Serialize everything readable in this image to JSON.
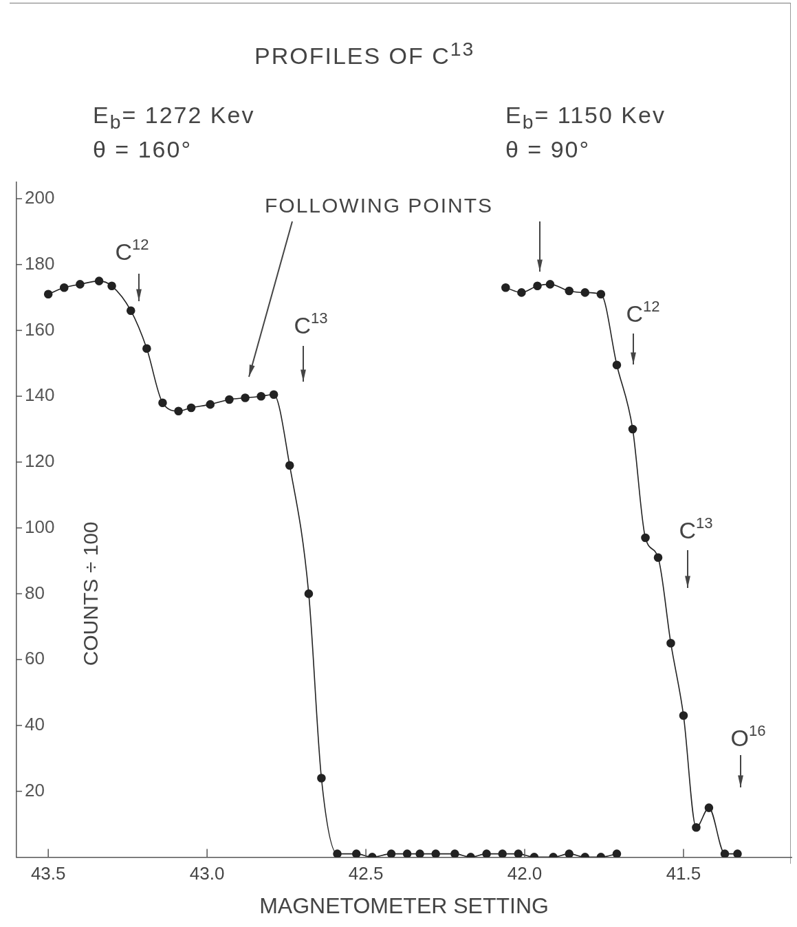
{
  "chart_data": {
    "type": "line",
    "title": "PROFILES OF C$^{13}$",
    "xlabel": "MAGNETOMETER SETTING",
    "ylabel": "COUNTS ÷ 100",
    "series": [
      {
        "color": "#222222",
        "x": [
          43.5,
          43.45,
          43.4,
          43.34,
          43.3,
          43.24,
          43.19,
          43.14,
          43.09,
          43.05,
          42.99,
          42.93,
          42.88,
          42.83,
          42.79,
          42.74,
          42.68,
          42.64,
          42.59,
          42.53,
          42.48,
          42.42,
          42.37,
          42.33,
          42.28,
          42.22,
          42.17,
          42.12,
          42.07,
          42.02,
          41.97,
          41.91,
          41.86,
          41.81,
          41.76,
          41.71
        ],
        "values": [
          171,
          173,
          174,
          175,
          173.5,
          166,
          154.5,
          138,
          135.5,
          136.5,
          137.5,
          139,
          139.5,
          140,
          140.5,
          119,
          80,
          24,
          1,
          1,
          0,
          1,
          1,
          1,
          1,
          1,
          0,
          1,
          1,
          1,
          0,
          0,
          1,
          0,
          0,
          1
        ]
      },
      {
        "color": "#222222",
        "x": [
          42.06,
          42.01,
          41.96,
          41.92,
          41.86,
          41.81,
          41.76,
          41.71,
          41.66,
          41.62,
          41.58,
          41.54,
          41.5,
          41.46,
          41.42,
          41.37,
          41.33
        ],
        "values": [
          173,
          171.5,
          173.5,
          174,
          172,
          171.5,
          171,
          149.5,
          130,
          97,
          91,
          65,
          43,
          9,
          15,
          1,
          1
        ]
      }
    ],
    "xlim": [
      43.6,
      41.16
    ],
    "xticks": [
      43.5,
      {
        "value": 43,
        "label": "43.0"
      },
      42.5,
      {
        "value": 42,
        "label": "42.0"
      },
      41.5
    ],
    "ylim": [
      0,
      205
    ],
    "yticks": [
      20,
      40,
      60,
      80,
      100,
      120,
      140,
      160,
      180,
      200
    ],
    "grid": false,
    "legend": false,
    "marker": "circle",
    "annotations": [
      "E$_{b}$= 1272 Kev",
      "θ = 160°",
      "E$_{b}$= 1150 Kev",
      "θ = 90°",
      "FOLLOWING POINTS",
      "C$^{12}$",
      "C$^{13}$",
      "C$^{12}$",
      "C$^{13}$",
      "O$^{16}$"
    ]
  }
}
